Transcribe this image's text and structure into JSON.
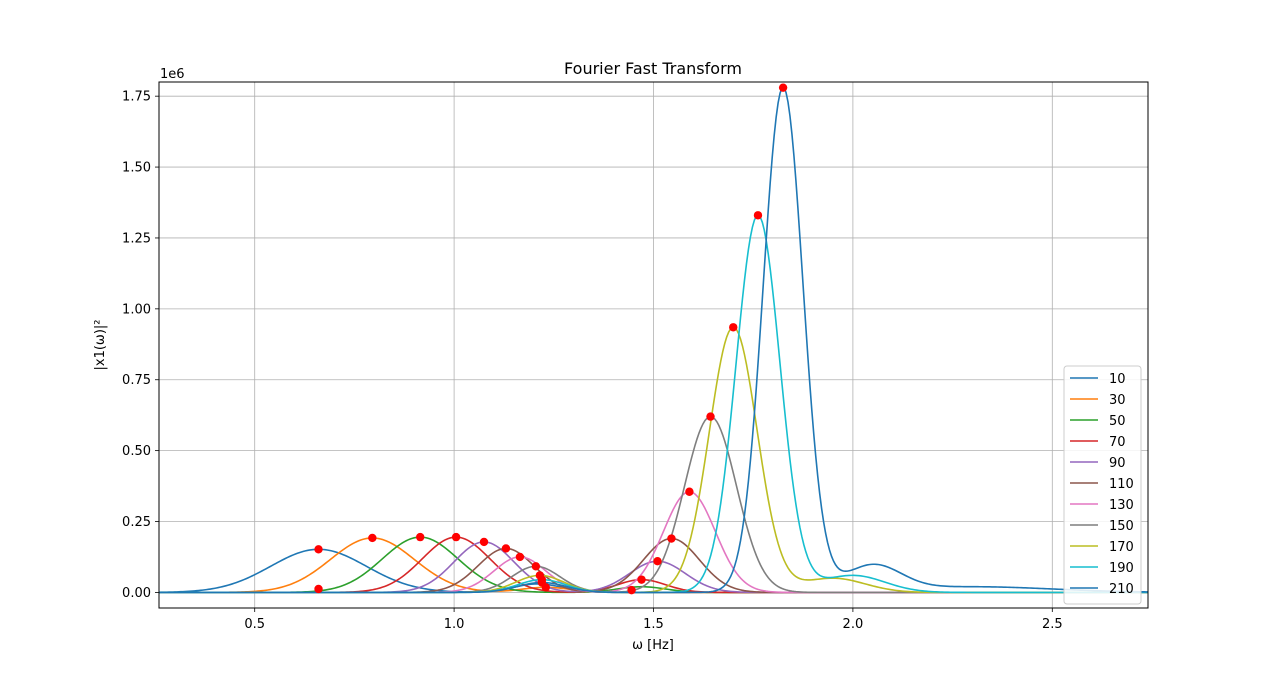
{
  "chart_data": {
    "type": "line",
    "title": "Fourier Fast Transform",
    "xlabel": "ω [Hz]",
    "ylabel": "|x1(ω)|²",
    "y_offset_label": "1e6",
    "xlim": [
      0.26,
      2.74
    ],
    "ylim": [
      -0.055,
      1.8
    ],
    "x_ticks": [
      0.5,
      1.0,
      1.5,
      2.0,
      2.5
    ],
    "x_tick_labels": [
      "0.5",
      "1.0",
      "1.5",
      "2.0",
      "2.5"
    ],
    "y_ticks": [
      0.0,
      0.25,
      0.5,
      0.75,
      1.0,
      1.25,
      1.5,
      1.75
    ],
    "y_tick_labels": [
      "0.00",
      "0.25",
      "0.50",
      "0.75",
      "1.00",
      "1.25",
      "1.50",
      "1.75"
    ],
    "grid": true,
    "legend_position": "lower-right",
    "series": [
      {
        "name": "10",
        "color": "#1f77b4",
        "peaks": [
          [
            0.66,
            0.152,
            0.12
          ],
          [
            1.21,
            0.03,
            0.06
          ]
        ],
        "markers": [
          [
            0.66,
            0.152
          ]
        ]
      },
      {
        "name": "30",
        "color": "#ff7f0e",
        "peaks": [
          [
            0.795,
            0.192,
            0.105
          ],
          [
            1.23,
            0.018,
            0.06
          ]
        ],
        "markers": [
          [
            0.795,
            0.192
          ],
          [
            1.23,
            0.018
          ]
        ]
      },
      {
        "name": "50",
        "color": "#2ca02c",
        "peaks": [
          [
            0.915,
            0.195,
            0.095
          ],
          [
            1.47,
            0.02,
            0.06
          ]
        ],
        "markers": [
          [
            0.915,
            0.195
          ]
        ]
      },
      {
        "name": "70",
        "color": "#d62728",
        "peaks": [
          [
            1.005,
            0.195,
            0.085
          ],
          [
            1.47,
            0.045,
            0.06
          ]
        ],
        "markers": [
          [
            1.005,
            0.195
          ],
          [
            1.47,
            0.045
          ],
          [
            0.66,
            0.012
          ]
        ]
      },
      {
        "name": "90",
        "color": "#9467bd",
        "peaks": [
          [
            1.075,
            0.178,
            0.075
          ],
          [
            1.51,
            0.11,
            0.07
          ]
        ],
        "markers": [
          [
            1.075,
            0.178
          ],
          [
            1.51,
            0.11
          ]
        ]
      },
      {
        "name": "110",
        "color": "#8c564b",
        "peaks": [
          [
            1.13,
            0.155,
            0.07
          ],
          [
            1.545,
            0.19,
            0.07
          ]
        ],
        "markers": [
          [
            1.13,
            0.155
          ],
          [
            1.545,
            0.19
          ]
        ]
      },
      {
        "name": "130",
        "color": "#e377c2",
        "peaks": [
          [
            1.165,
            0.125,
            0.065
          ],
          [
            1.59,
            0.355,
            0.065
          ]
        ],
        "markers": [
          [
            1.165,
            0.125
          ],
          [
            1.59,
            0.355
          ]
        ]
      },
      {
        "name": "150",
        "color": "#7f7f7f",
        "peaks": [
          [
            1.205,
            0.092,
            0.06
          ],
          [
            1.643,
            0.62,
            0.065
          ]
        ],
        "markers": [
          [
            1.205,
            0.092
          ],
          [
            1.643,
            0.62
          ]
        ]
      },
      {
        "name": "170",
        "color": "#bcbd22",
        "peaks": [
          [
            1.215,
            0.06,
            0.06
          ],
          [
            1.7,
            0.935,
            0.06
          ],
          [
            1.95,
            0.05,
            0.08
          ]
        ],
        "markers": [
          [
            1.215,
            0.06
          ],
          [
            1.7,
            0.935
          ]
        ]
      },
      {
        "name": "190",
        "color": "#17becf",
        "peaks": [
          [
            1.22,
            0.045,
            0.06
          ],
          [
            1.762,
            1.33,
            0.055
          ],
          [
            2.0,
            0.06,
            0.08
          ]
        ],
        "markers": [
          [
            1.22,
            0.045
          ],
          [
            1.762,
            1.33
          ]
        ]
      },
      {
        "name": "210",
        "color": "#1f77b4",
        "peaks": [
          [
            1.22,
            0.035,
            0.06
          ],
          [
            1.825,
            1.78,
            0.05
          ],
          [
            2.05,
            0.09,
            0.07
          ],
          [
            2.3,
            0.02,
            0.2
          ]
        ],
        "markers": [
          [
            1.825,
            1.78
          ],
          [
            1.22,
            0.035
          ],
          [
            1.445,
            0.008
          ]
        ]
      }
    ]
  }
}
